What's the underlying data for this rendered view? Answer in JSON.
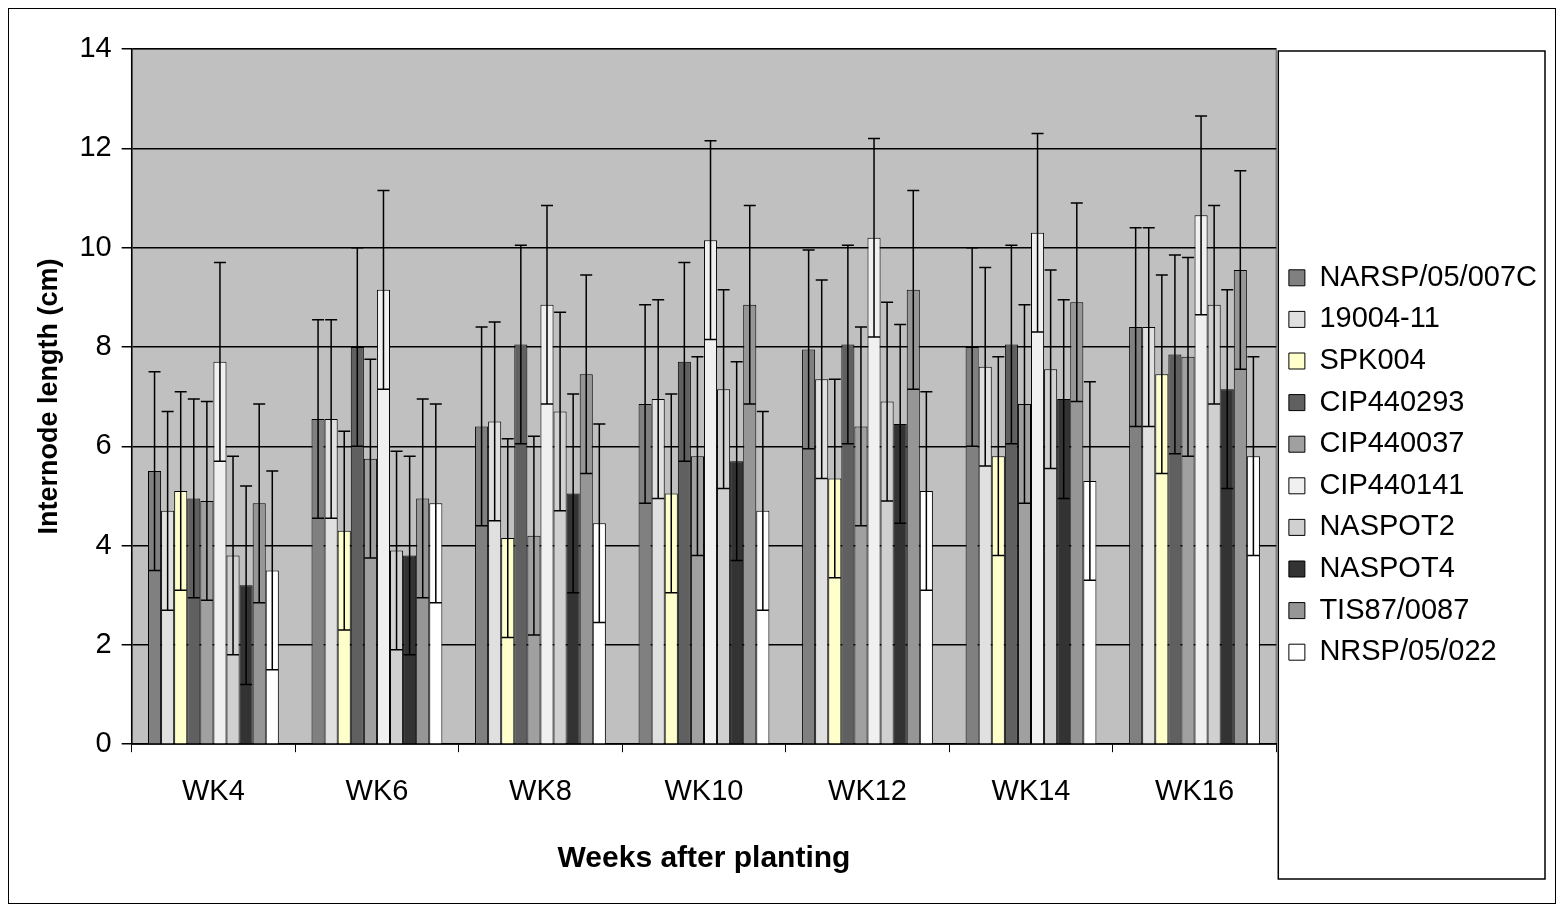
{
  "chart_data": {
    "type": "bar",
    "xlabel": "Weeks after planting",
    "ylabel": "Internode length (cm)",
    "categories": [
      "WK4",
      "WK6",
      "WK8",
      "WK10",
      "WK12",
      "WK14",
      "WK16"
    ],
    "ylim": [
      0,
      14
    ],
    "yticks": [
      0,
      2,
      4,
      6,
      8,
      10,
      12,
      14
    ],
    "grid": "y",
    "legend": "right",
    "series": [
      {
        "name": "NARSP/05/007C",
        "color": "#808080",
        "values": [
          5.5,
          6.55,
          6.4,
          6.85,
          7.95,
          8.0,
          8.4
        ],
        "errors": [
          2,
          2,
          2,
          2,
          2,
          2,
          2
        ]
      },
      {
        "name": "19004-11",
        "color": "#e0e0e0",
        "values": [
          4.7,
          6.55,
          6.5,
          6.95,
          7.35,
          7.6,
          8.4
        ],
        "errors": [
          2,
          2,
          2,
          2,
          2,
          2,
          2
        ]
      },
      {
        "name": "SPK004",
        "color": "#ffffcc",
        "values": [
          5.1,
          4.3,
          4.15,
          5.05,
          5.35,
          5.8,
          7.45
        ],
        "errors": [
          2,
          2,
          2,
          2,
          2,
          2,
          2
        ]
      },
      {
        "name": "CIP440293",
        "color": "#606060",
        "values": [
          4.95,
          8.0,
          8.05,
          7.7,
          8.05,
          8.05,
          7.85
        ],
        "errors": [
          2,
          2,
          2,
          2,
          2,
          2,
          2
        ]
      },
      {
        "name": "CIP440037",
        "color": "#a0a0a0",
        "values": [
          4.9,
          5.75,
          4.2,
          5.8,
          6.4,
          6.85,
          7.8
        ],
        "errors": [
          2,
          2,
          2,
          2,
          2,
          2,
          2
        ]
      },
      {
        "name": "CIP440141",
        "color": "#f0f0f0",
        "values": [
          7.7,
          9.15,
          8.85,
          10.15,
          10.2,
          10.3,
          10.65
        ],
        "errors": [
          2,
          2,
          2,
          2,
          2,
          2,
          2
        ]
      },
      {
        "name": "NASPOT2",
        "color": "#d0d0d0",
        "values": [
          3.8,
          3.9,
          6.7,
          7.15,
          6.9,
          7.55,
          8.85
        ],
        "errors": [
          2,
          2,
          2,
          2,
          2,
          2,
          2
        ]
      },
      {
        "name": "NASPOT4",
        "color": "#333333",
        "values": [
          3.2,
          3.8,
          5.05,
          5.7,
          6.45,
          6.95,
          7.15
        ],
        "errors": [
          2,
          2,
          2,
          2,
          2,
          2,
          2
        ]
      },
      {
        "name": "TIS87/0087",
        "color": "#969696",
        "values": [
          4.85,
          4.95,
          7.45,
          8.85,
          9.15,
          8.9,
          9.55
        ],
        "errors": [
          2,
          2,
          2,
          2,
          2,
          2,
          2
        ]
      },
      {
        "name": "NRSP/05/022",
        "color": "#ffffff",
        "values": [
          3.5,
          4.85,
          4.45,
          4.7,
          5.1,
          5.3,
          5.8
        ],
        "errors": [
          2,
          2,
          2,
          2,
          2,
          2,
          2
        ]
      }
    ]
  }
}
